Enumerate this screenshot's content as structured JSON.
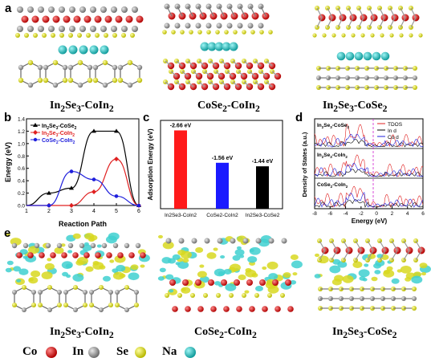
{
  "panel_labels": {
    "a": "a",
    "b": "b",
    "c": "c",
    "d": "d",
    "e": "e"
  },
  "structure_captions": [
    "In2Se3-CoIn2",
    "CoSe2-CoIn2",
    "In2Se3-CoSe2"
  ],
  "element_legend": [
    {
      "symbol": "Co",
      "color": "#d42020"
    },
    {
      "symbol": "In",
      "color": "#8c8c8c"
    },
    {
      "symbol": "Se",
      "color": "#e6e61a"
    },
    {
      "symbol": "Na",
      "color": "#1fc4c4"
    }
  ],
  "chart_data": [
    {
      "id": "b",
      "type": "line",
      "xlabel": "Reaction Path",
      "ylabel": "Energy (eV)",
      "xlim": [
        1,
        6
      ],
      "ylim": [
        0,
        1.4
      ],
      "xticks": [
        1,
        2,
        3,
        4,
        5,
        6
      ],
      "yticks": [
        0.0,
        0.2,
        0.4,
        0.6,
        0.8,
        1.0,
        1.2,
        1.4
      ],
      "legend_position": "top-left",
      "series": [
        {
          "name": "In2Se3-CoSe2",
          "color": "#000000",
          "marker": "triangle",
          "x": [
            2,
            3,
            4,
            5,
            6
          ],
          "y": [
            0.2,
            0.28,
            1.2,
            1.2,
            0.0
          ]
        },
        {
          "name": "In2Se3-CoIn2",
          "color": "#e02020",
          "marker": "diamond",
          "x": [
            2,
            3,
            4,
            5,
            6
          ],
          "y": [
            0.0,
            0.0,
            0.22,
            0.75,
            0.0
          ]
        },
        {
          "name": "CoSe2-CoIn2",
          "color": "#1f1fdc",
          "marker": "circle",
          "x": [
            2,
            3,
            4,
            5,
            6
          ],
          "y": [
            0.0,
            0.55,
            0.42,
            0.15,
            0.0
          ]
        }
      ]
    },
    {
      "id": "c",
      "type": "bar",
      "ylabel": "Adsorption Energy (eV)",
      "categories": [
        "In2Se3-CoIn2",
        "CoSe2-CoIn2",
        "In2Se3-CoSe2"
      ],
      "values": [
        2.66,
        1.56,
        1.44
      ],
      "value_labels": [
        "-2.66 eV",
        "-1.56 eV",
        "-1.44 eV"
      ],
      "colors": [
        "#ff1a1a",
        "#1a1aff",
        "#000000"
      ],
      "ylim": [
        0,
        3
      ]
    },
    {
      "id": "d",
      "type": "line",
      "xlabel": "Energy (eV)",
      "ylabel": "Density of States (a.u.)",
      "xlim": [
        -8,
        6
      ],
      "xticks": [
        -8,
        -6,
        -4,
        -2,
        0,
        2,
        4,
        6
      ],
      "legend": [
        "TDOS",
        "In d",
        "Co d"
      ],
      "legend_colors": [
        "#e02020",
        "#000000",
        "#1f1fdc"
      ],
      "fermi_level": 0,
      "panels": [
        "In2Se3-CoSe2",
        "In2Se3-CoIn2",
        "CoSe2-CoIn2"
      ]
    }
  ]
}
